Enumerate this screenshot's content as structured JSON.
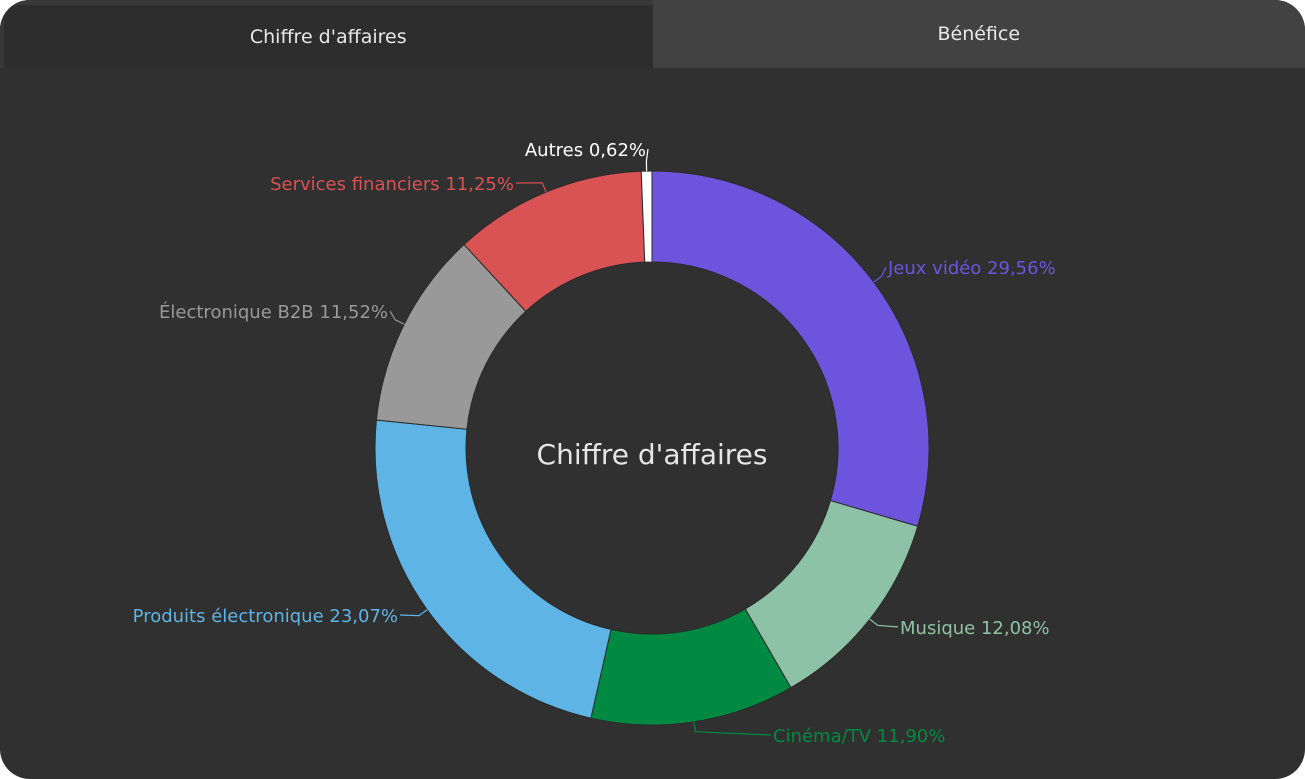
{
  "tabs": [
    {
      "label": "Chiffre d'affaires",
      "active": true
    },
    {
      "label": "Bénéfice",
      "active": false
    }
  ],
  "chart_data": {
    "type": "pie",
    "donut": true,
    "center_label": "Chiffre d'affaires",
    "legend": "none",
    "slices": [
      {
        "label": "Jeux vidéo",
        "percent_text": "29,56%",
        "value": 29.56,
        "color": "#6c55dc"
      },
      {
        "label": "Musique",
        "percent_text": "12,08%",
        "value": 12.08,
        "color": "#8ec2a6"
      },
      {
        "label": "Cinéma/TV",
        "percent_text": "11,90%",
        "value": 11.9,
        "color": "#008a41"
      },
      {
        "label": "Produits électronique",
        "percent_text": "23,07%",
        "value": 23.07,
        "color": "#5eb5e5"
      },
      {
        "label": "Électronique B2B",
        "percent_text": "11,52%",
        "value": 11.52,
        "color": "#999999"
      },
      {
        "label": "Services financiers",
        "percent_text": "11,25%",
        "value": 11.25,
        "color": "#d95254"
      },
      {
        "label": "Autres",
        "percent_text": "0,62%",
        "value": 0.62,
        "color": "#ffffff"
      }
    ]
  }
}
